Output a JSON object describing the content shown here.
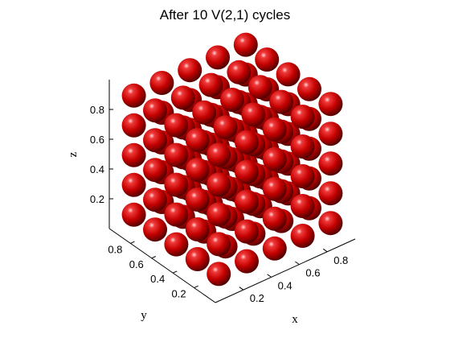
{
  "chart_data": {
    "type": "scatter3d",
    "title": "After 10 V(2,1) cycles",
    "xlabel": "x",
    "ylabel": "y",
    "zlabel": "z",
    "xlim": [
      0.0,
      1.0
    ],
    "ylim": [
      0.0,
      1.0
    ],
    "zlim": [
      0.0,
      1.0
    ],
    "xticks": [
      0.2,
      0.4,
      0.6,
      0.8
    ],
    "yticks": [
      0.2,
      0.4,
      0.6,
      0.8
    ],
    "zticks": [
      0.2,
      0.4,
      0.6,
      0.8
    ],
    "xtick_labels": [
      "0.2",
      "0.4",
      "0.6",
      "0.8"
    ],
    "ytick_labels": [
      "0.2",
      "0.4",
      "0.6",
      "0.8"
    ],
    "ztick_labels": [
      "0.2",
      "0.4",
      "0.6",
      "0.8"
    ],
    "grid_values": [
      0.1,
      0.3,
      0.5,
      0.7,
      0.9
    ],
    "marker": "sphere",
    "marker_color": "#cc0000",
    "grid": false
  }
}
